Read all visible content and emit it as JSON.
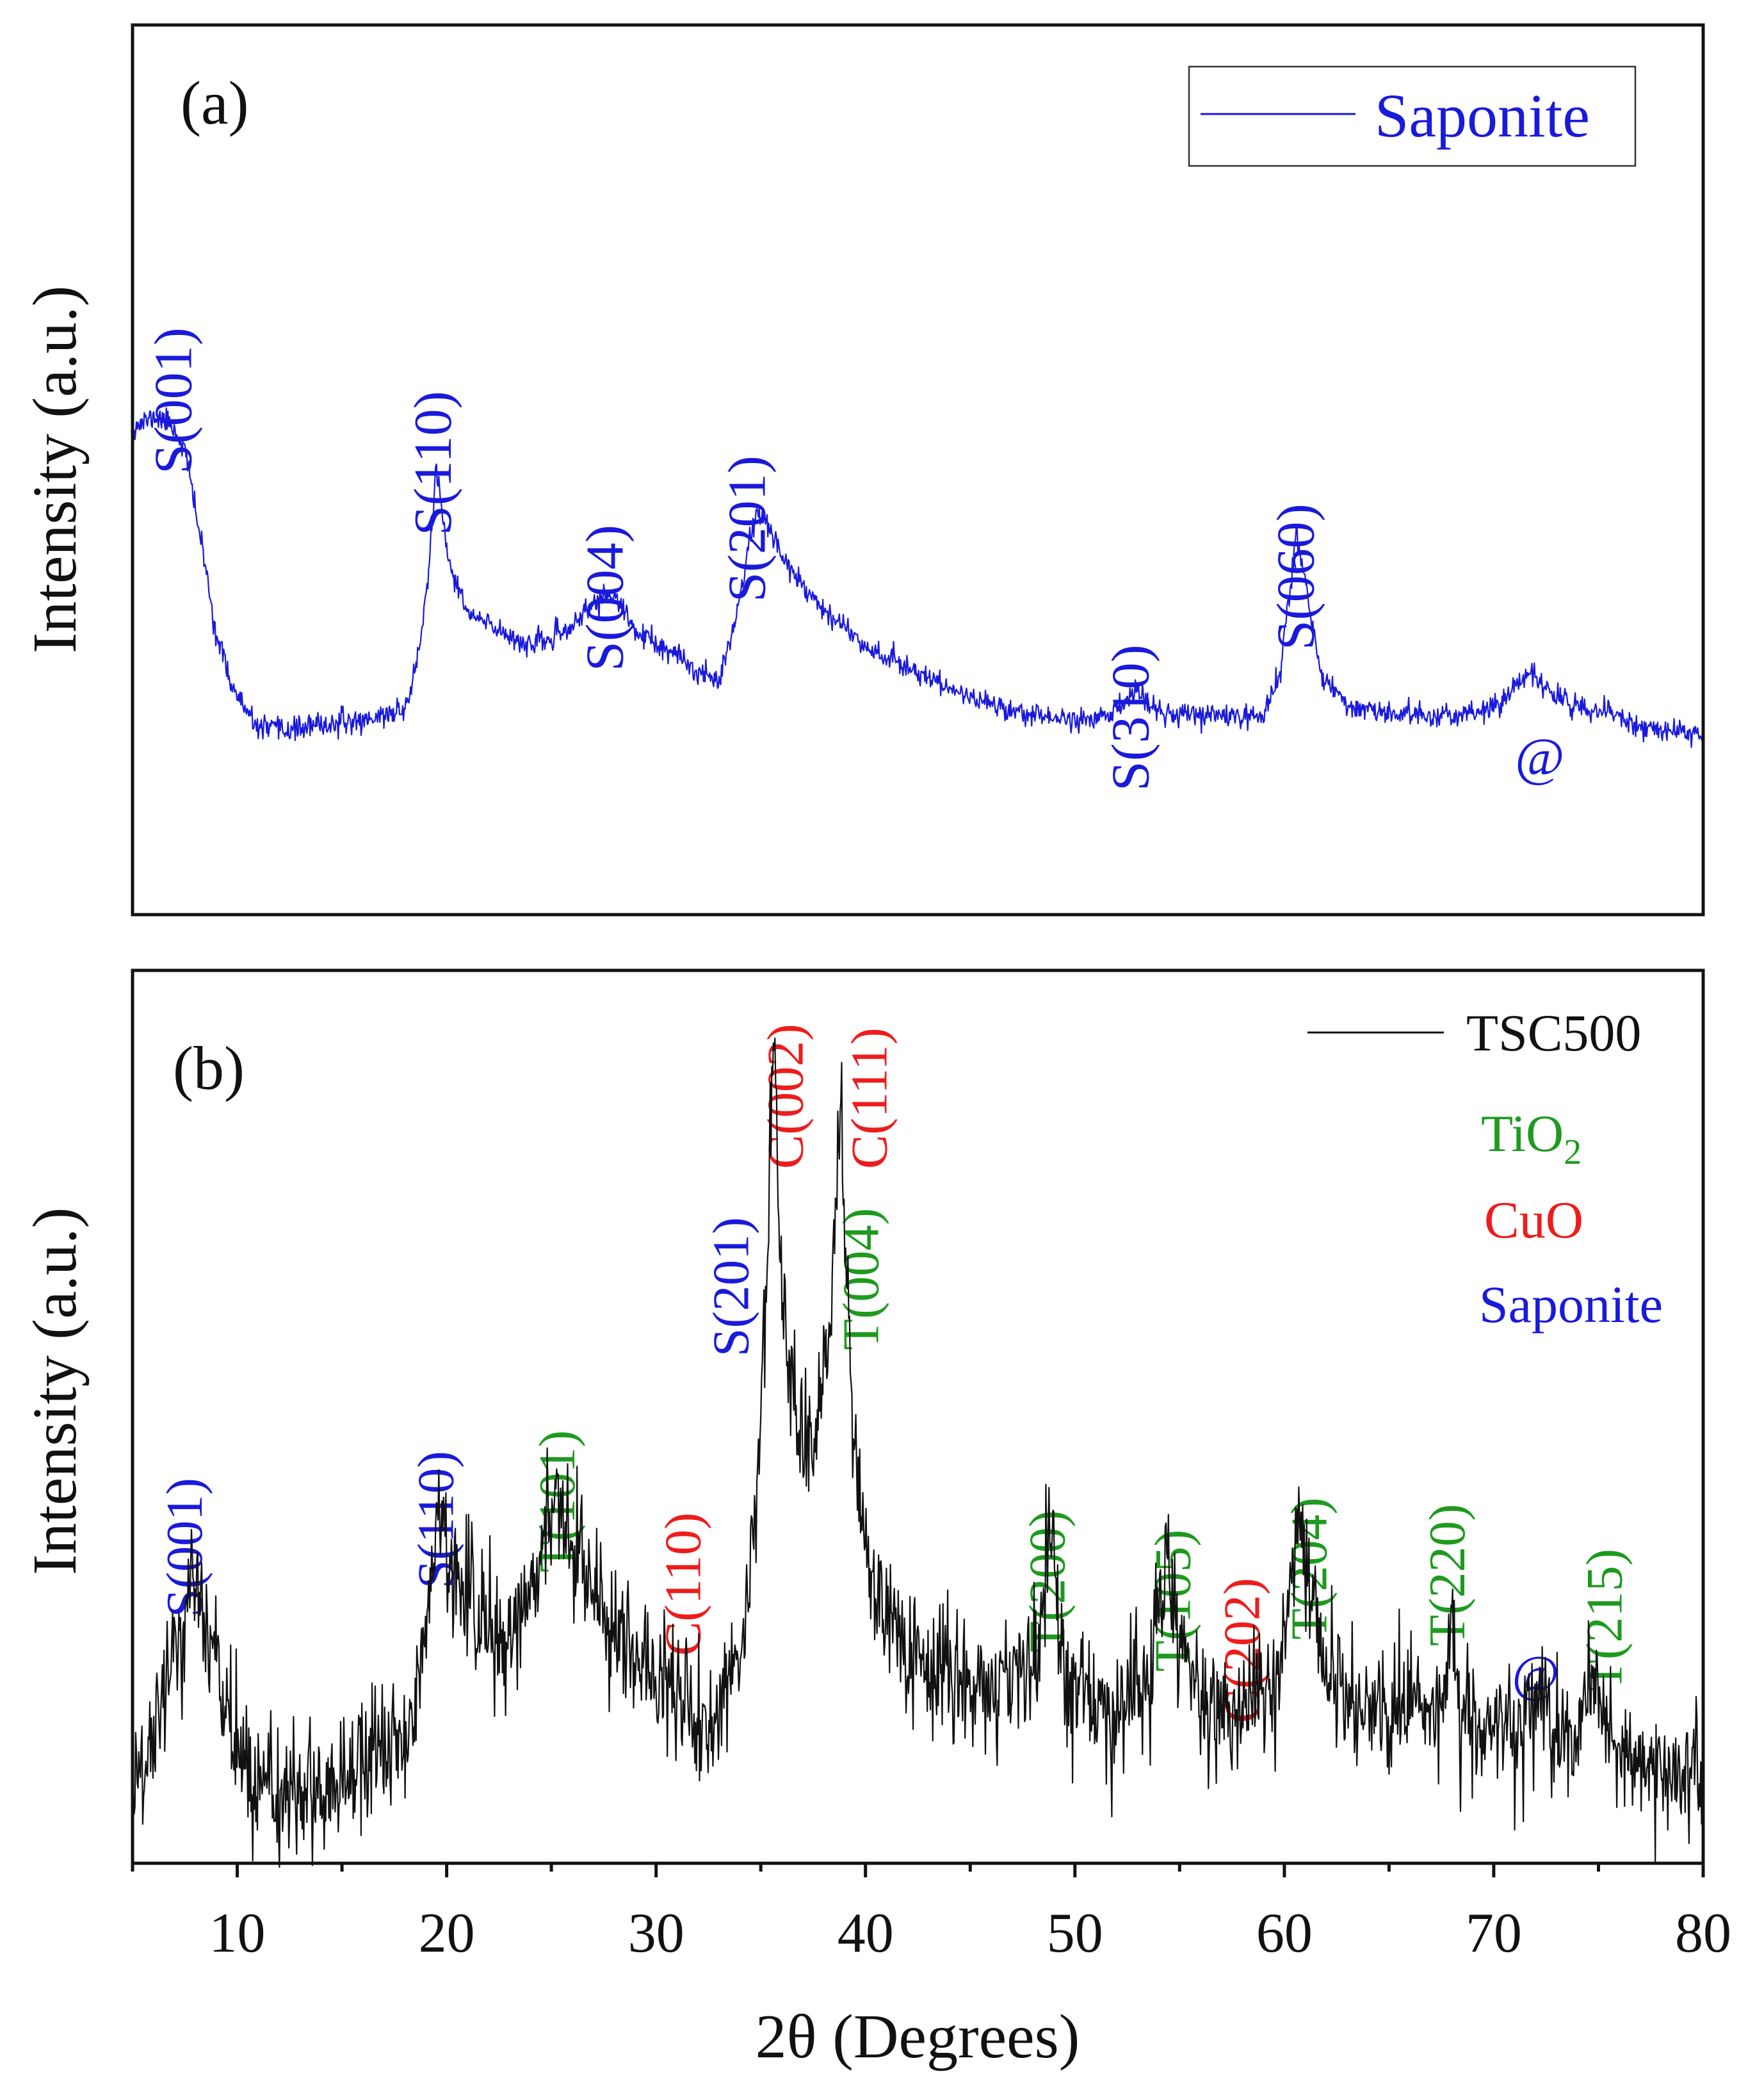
{
  "chart_data": [
    {
      "type": "line",
      "panel_label": "(a)",
      "title": "",
      "xlabel": "2θ (Degrees)",
      "ylabel": "Intensity (a.u.)",
      "xlim": [
        5,
        80
      ],
      "ylim": [
        0,
        100
      ],
      "yticks_shown": false,
      "legend": {
        "placement": "top-right",
        "entries": [
          {
            "label": "Saponite",
            "color": "#1a1adb"
          }
        ]
      },
      "series": [
        {
          "name": "Saponite",
          "color": "#1a1adb",
          "noise": 2.0,
          "x": [
            5,
            6,
            6.8,
            7.5,
            8.3,
            9,
            9.8,
            10.8,
            12,
            14,
            16,
            18,
            18.6,
            19.1,
            19.5,
            20,
            21,
            22,
            24,
            25.5,
            26.8,
            27.7,
            28.2,
            29,
            30,
            31,
            32,
            33,
            33.8,
            34.4,
            34.8,
            35.5,
            36.5,
            38,
            40,
            42,
            44,
            46,
            48,
            50,
            51.5,
            52.4,
            53,
            53.6,
            55,
            57,
            59,
            59.8,
            60.2,
            60.6,
            61.1,
            61.8,
            63,
            65,
            67,
            69,
            70.3,
            71.2,
            71.8,
            72.5,
            73.5,
            75,
            77,
            80
          ],
          "y": [
            87,
            89,
            88,
            83,
            65,
            48,
            38,
            31,
            30,
            31,
            32,
            34,
            43,
            58,
            80,
            63,
            52,
            50,
            46,
            48,
            53,
            56,
            54,
            49,
            46,
            44,
            41,
            40,
            51,
            64,
            72,
            67,
            60,
            53,
            46,
            42,
            38,
            35,
            33,
            32,
            33,
            35,
            38,
            34,
            33,
            33,
            33,
            41,
            55,
            67,
            56,
            40,
            35,
            33,
            33,
            33,
            35,
            39,
            41,
            38,
            35,
            34,
            31,
            29
          ]
        }
      ],
      "annotations": [
        {
          "text": "S(001)",
          "x": 7.8,
          "color": "#1a1adb"
        },
        {
          "text": "S(110)",
          "x": 20.2,
          "color": "#1a1adb"
        },
        {
          "text": "S(004)",
          "x": 28.4,
          "color": "#1a1adb"
        },
        {
          "text": "S(201)",
          "x": 35.2,
          "color": "#1a1adb"
        },
        {
          "text": "S(310)",
          "x": 53.5,
          "color": "#1a1adb"
        },
        {
          "text": "S(060)",
          "x": 61.4,
          "color": "#1a1adb"
        },
        {
          "text": "@",
          "x": 72.2,
          "color": "#1a1adb",
          "horizontal": true
        }
      ]
    },
    {
      "type": "line",
      "panel_label": "(b)",
      "title": "",
      "xlabel": "2θ (Degrees)",
      "ylabel": "Intensity (a.u.)",
      "xlim": [
        5,
        80
      ],
      "ylim": [
        0,
        100
      ],
      "xticks": [
        10,
        20,
        30,
        40,
        50,
        60,
        70,
        80
      ],
      "yticks_shown": false,
      "legend": {
        "placement": "top-right",
        "entries": [
          {
            "label": "TSC500",
            "color": "#111111",
            "line": true
          },
          {
            "label": "TiO",
            "subscript": "2",
            "color": "#1e9a1e"
          },
          {
            "label": "CuO",
            "color": "#ee1c1c"
          },
          {
            "label": "Saponite",
            "color": "#1a1adb"
          }
        ]
      },
      "series": [
        {
          "name": "TSC500",
          "color": "#111111",
          "noise": 7.0,
          "x": [
            5,
            6,
            7,
            7.8,
            8.6,
            9.5,
            10.5,
            12,
            14,
            16,
            18,
            18.8,
            19.4,
            19.8,
            20.4,
            21.5,
            23,
            24.3,
            25.2,
            26,
            27,
            28.5,
            30,
            31.5,
            32.5,
            33.5,
            34.3,
            34.9,
            35.3,
            35.6,
            35.9,
            36.4,
            37,
            37.8,
            38.4,
            38.8,
            39.2,
            39.8,
            40.8,
            42,
            44,
            46,
            47.5,
            48.3,
            48.8,
            49.3,
            50.5,
            52,
            53.5,
            54.3,
            55,
            56,
            57.5,
            58.2,
            58.7,
            59.4,
            60.1,
            60.6,
            61.2,
            62,
            63.5,
            65,
            66.2,
            67.2,
            68,
            68.4,
            69.5,
            71,
            72.2,
            73,
            74,
            74.9,
            75.5,
            77,
            80
          ],
          "y": [
            7,
            13,
            25,
            33,
            27,
            16,
            9,
            6,
            8,
            11,
            15,
            22,
            36,
            40,
            33,
            28,
            24,
            34,
            42,
            37,
            31,
            26,
            21,
            17,
            15,
            18,
            28,
            46,
            72,
            98,
            72,
            56,
            48,
            52,
            66,
            90,
            62,
            38,
            28,
            24,
            21,
            19,
            22,
            24,
            40,
            22,
            18,
            16,
            22,
            32,
            25,
            19,
            15,
            18,
            21,
            16,
            26,
            42,
            32,
            22,
            18,
            15,
            20,
            15,
            26,
            16,
            15,
            15,
            19,
            14,
            14,
            22,
            14,
            11,
            10
          ]
        }
      ],
      "annotations": [
        {
          "text": "S(001)",
          "x": 8.3,
          "color": "#1a1adb"
        },
        {
          "text": "S(110)",
          "x": 20.3,
          "color": "#1a1adb"
        },
        {
          "text": "T(101)",
          "x": 26.1,
          "color": "#1e9a1e"
        },
        {
          "text": "C(110)",
          "x": 32.1,
          "color": "#ee1c1c"
        },
        {
          "text": "S(201)",
          "x": 34.4,
          "color": "#1a1adb"
        },
        {
          "text": "C(002)",
          "x": 37.0,
          "color": "#ee1c1c"
        },
        {
          "text": "C(111)",
          "x": 41.0,
          "color": "#ee1c1c"
        },
        {
          "text": "T(004)",
          "x": 40.6,
          "color": "#1e9a1e"
        },
        {
          "text": "T(200)",
          "x": 49.5,
          "color": "#1e9a1e"
        },
        {
          "text": "T(105)",
          "x": 55.5,
          "color": "#1e9a1e"
        },
        {
          "text": "C(202)",
          "x": 58.8,
          "color": "#ee1c1c"
        },
        {
          "text": "T(204)",
          "x": 62.0,
          "color": "#1e9a1e"
        },
        {
          "text": "T(220)",
          "x": 68.6,
          "color": "#1e9a1e"
        },
        {
          "text": "@",
          "x": 72.0,
          "color": "#1a1adb",
          "horizontal": true
        },
        {
          "text": "T(215)",
          "x": 76.1,
          "color": "#1e9a1e"
        }
      ]
    }
  ]
}
